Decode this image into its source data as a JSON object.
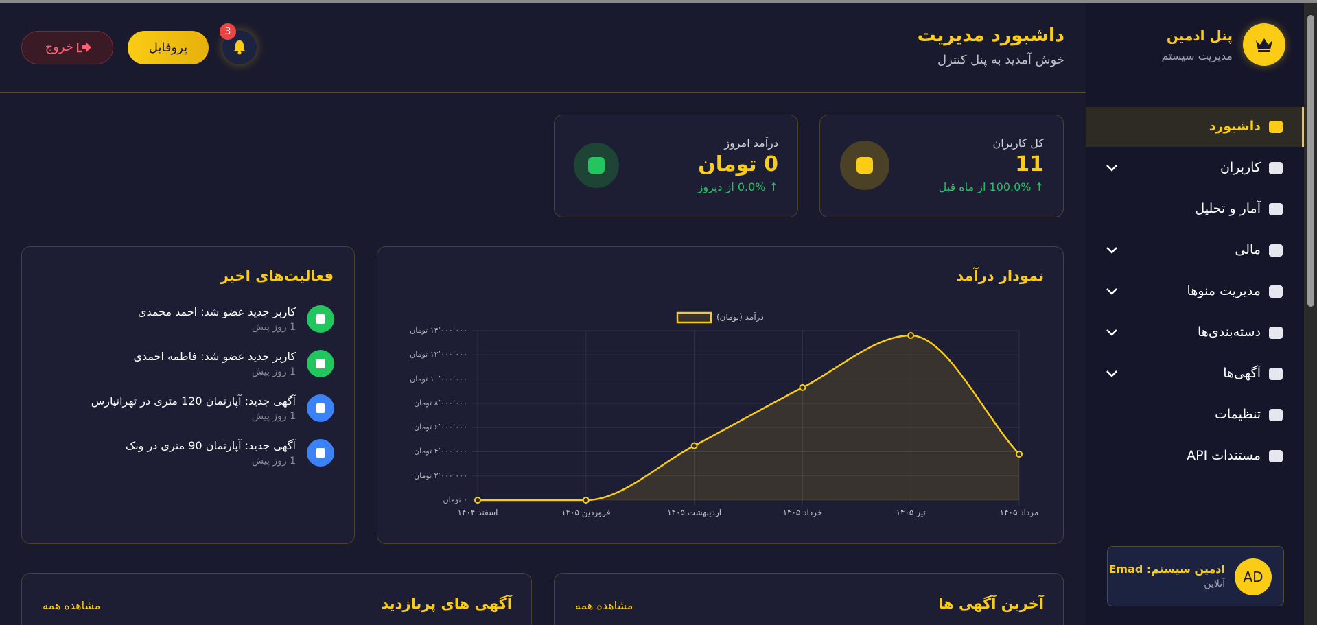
{
  "sidebar": {
    "title": "پنل ادمین",
    "subtitle": "مدیریت سیستم",
    "menu": [
      "داشبورد",
      "کاربران",
      "آمار و تحلیل",
      "مالی",
      "مدیریت منوها",
      "دسته‌بندی‌ها",
      "آگهی‌ها",
      "تنظیمات",
      "مستندات API"
    ],
    "user": {
      "avatar": "AD",
      "name": "ادمین سیستم: Emad",
      "status": "آنلاین"
    }
  },
  "header": {
    "title": "داشبورد مدیریت",
    "subtitle": "خوش آمدید به پنل کنترل",
    "notifications": "3",
    "profile": "پروفایل",
    "logout": "خروج"
  },
  "stats": [
    {
      "label": "کل کاربران",
      "value": "11",
      "change": "↑ 100.0% از ماه قبل"
    },
    {
      "label": "درآمد امروز",
      "value": "0 تومان",
      "change": "↑ 0.0% از دیروز"
    }
  ],
  "chart_data": {
    "type": "line",
    "title": "نمودار درآمد",
    "categories": [
      "اسفند ۱۴۰۴",
      "فروردین ۱۴۰۵",
      "اردیبهشت ۱۴۰۵",
      "خرداد ۱۴۰۵",
      "تیر ۱۴۰۵",
      "مرداد ۱۴۰۵"
    ],
    "series": [
      {
        "name": "درآمد (تومان)",
        "color": "#facc15",
        "values": [
          0,
          0,
          4500000,
          9300000,
          13600000,
          3800000
        ]
      }
    ],
    "ylim": [
      0,
      14000000
    ],
    "yticks": [
      {
        "value": 0,
        "label": "۰ تومان"
      },
      {
        "value": 2000000,
        "label": "۲٬۰۰۰٬۰۰۰ تومان"
      },
      {
        "value": 4000000,
        "label": "۴٬۰۰۰٬۰۰۰ تومان"
      },
      {
        "value": 6000000,
        "label": "۶٬۰۰۰٬۰۰۰ تومان"
      },
      {
        "value": 8000000,
        "label": "۸٬۰۰۰٬۰۰۰ تومان"
      },
      {
        "value": 10000000,
        "label": "۱۰٬۰۰۰٬۰۰۰ تومان"
      },
      {
        "value": 12000000,
        "label": "۱۲٬۰۰۰٬۰۰۰ تومان"
      },
      {
        "value": 14000000,
        "label": "۱۴٬۰۰۰٬۰۰۰ تومان"
      }
    ],
    "grid": true
  },
  "activities": {
    "title": "فعالیت‌های اخیر",
    "items": [
      {
        "text": "کاربر جدید عضو شد: احمد محمدی",
        "time": "1 روز پیش"
      },
      {
        "text": "کاربر جدید عضو شد: فاطمه احمدی",
        "time": "1 روز پیش"
      },
      {
        "text": "آگهی جدید: آپارتمان 120 متری در تهرانپارس",
        "time": "1 روز پیش"
      },
      {
        "text": "آگهی جدید: آپارتمان 90 متری در ونک",
        "time": "1 روز پیش"
      }
    ]
  },
  "panels": [
    {
      "title": "آخرین آگهی ها",
      "link": "مشاهده همه"
    },
    {
      "title": "آگهی های پربازدید",
      "link": "مشاهده همه"
    }
  ]
}
